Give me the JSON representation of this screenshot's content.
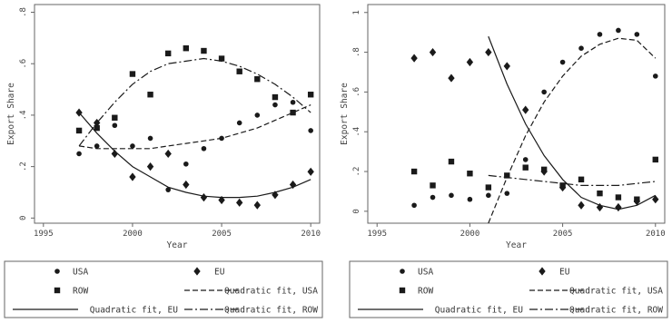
{
  "chart_data": [
    {
      "type": "scatter",
      "xlabel": "Year",
      "ylabel": "Export Share",
      "xlim": [
        1994.5,
        2010.5
      ],
      "ylim": [
        -0.02,
        0.83
      ],
      "xticks": [
        1995,
        2000,
        2005,
        2010
      ],
      "xtick_labels": [
        "1995",
        "2000",
        "2005",
        "2010"
      ],
      "yticks": [
        0,
        0.2,
        0.4,
        0.6,
        0.8
      ],
      "ytick_labels": [
        "0",
        ".2",
        ".4",
        ".6",
        ".8"
      ],
      "grid": false,
      "legend_placement": "bottom",
      "series": [
        {
          "name": "USA",
          "marker": "circle",
          "x": [
            1997,
            1998,
            1999,
            2000,
            2001,
            2002,
            2003,
            2004,
            2005,
            2006,
            2007,
            2008,
            2009,
            2010
          ],
          "y": [
            0.25,
            0.28,
            0.36,
            0.28,
            0.31,
            0.11,
            0.21,
            0.27,
            0.31,
            0.37,
            0.4,
            0.44,
            0.45,
            0.34
          ]
        },
        {
          "name": "EU",
          "marker": "diamond",
          "x": [
            1997,
            1998,
            1999,
            2000,
            2001,
            2002,
            2003,
            2004,
            2005,
            2006,
            2007,
            2008,
            2009,
            2010
          ],
          "y": [
            0.41,
            0.37,
            0.25,
            0.16,
            0.2,
            0.25,
            0.13,
            0.08,
            0.07,
            0.06,
            0.05,
            0.09,
            0.13,
            0.18
          ]
        },
        {
          "name": "ROW",
          "marker": "square",
          "x": [
            1997,
            1998,
            1999,
            2000,
            2001,
            2002,
            2003,
            2004,
            2005,
            2006,
            2007,
            2008,
            2009,
            2010
          ],
          "y": [
            0.34,
            0.35,
            0.39,
            0.56,
            0.48,
            0.64,
            0.66,
            0.65,
            0.62,
            0.57,
            0.54,
            0.47,
            0.41,
            0.48
          ]
        }
      ],
      "fits": [
        {
          "name": "Quadratic fit, USA",
          "style": "dash",
          "x_range": [
            1997,
            2010
          ],
          "x": [
            1997,
            1998,
            1999,
            2000,
            2001,
            2002,
            2003,
            2004,
            2005,
            2006,
            2007,
            2008,
            2009,
            2010
          ],
          "y": [
            0.28,
            0.27,
            0.27,
            0.27,
            0.27,
            0.28,
            0.29,
            0.3,
            0.31,
            0.33,
            0.35,
            0.38,
            0.41,
            0.44
          ]
        },
        {
          "name": "Quadratic fit, EU",
          "style": "solid",
          "x_range": [
            1997,
            2010
          ],
          "x": [
            1997,
            1998,
            1999,
            2000,
            2001,
            2002,
            2003,
            2004,
            2005,
            2006,
            2007,
            2008,
            2009,
            2010
          ],
          "y": [
            0.41,
            0.33,
            0.26,
            0.2,
            0.16,
            0.12,
            0.1,
            0.085,
            0.08,
            0.08,
            0.085,
            0.1,
            0.12,
            0.15
          ]
        },
        {
          "name": "Quadratic fit, ROW",
          "style": "dashdot",
          "x_range": [
            1997,
            2010
          ],
          "x": [
            1997,
            1998,
            1999,
            2000,
            2001,
            2002,
            2003,
            2004,
            2005,
            2006,
            2007,
            2008,
            2009,
            2010
          ],
          "y": [
            0.28,
            0.37,
            0.45,
            0.52,
            0.57,
            0.6,
            0.61,
            0.62,
            0.61,
            0.59,
            0.56,
            0.52,
            0.47,
            0.41
          ]
        }
      ],
      "legend": [
        "USA",
        "EU",
        "ROW",
        "Quadratic fit, USA",
        "Quadratic fit, EU",
        "Quadratic fit, ROW"
      ]
    },
    {
      "type": "scatter",
      "xlabel": "Year",
      "ylabel": "Export Share",
      "xlim": [
        1994.5,
        2010.5
      ],
      "ylim": [
        -0.06,
        1.04
      ],
      "xticks": [
        1995,
        2000,
        2005,
        2010
      ],
      "xtick_labels": [
        "1995",
        "2000",
        "2005",
        "2010"
      ],
      "yticks": [
        0,
        0.2,
        0.4,
        0.6,
        0.8,
        1
      ],
      "ytick_labels": [
        "0",
        ".2",
        ".4",
        ".6",
        ".8",
        "1"
      ],
      "grid": false,
      "legend_placement": "bottom",
      "series": [
        {
          "name": "USA",
          "marker": "circle",
          "x": [
            1997,
            1998,
            1999,
            2000,
            2001,
            2002,
            2003,
            2004,
            2005,
            2006,
            2007,
            2008,
            2009,
            2010
          ],
          "y": [
            0.03,
            0.07,
            0.08,
            0.06,
            0.08,
            0.09,
            0.26,
            0.6,
            0.75,
            0.82,
            0.89,
            0.91,
            0.89,
            0.68
          ]
        },
        {
          "name": "EU",
          "marker": "diamond",
          "x": [
            1997,
            1998,
            1999,
            2000,
            2001,
            2002,
            2003,
            2004,
            2005,
            2006,
            2007,
            2008,
            2009,
            2010
          ],
          "y": [
            0.77,
            0.8,
            0.67,
            0.75,
            0.8,
            0.73,
            0.51,
            0.2,
            0.12,
            0.03,
            0.02,
            0.02,
            0.05,
            0.06
          ]
        },
        {
          "name": "ROW",
          "marker": "square",
          "x": [
            1997,
            1998,
            1999,
            2000,
            2001,
            2002,
            2003,
            2004,
            2005,
            2006,
            2007,
            2008,
            2009,
            2010
          ],
          "y": [
            0.2,
            0.13,
            0.25,
            0.19,
            0.12,
            0.18,
            0.22,
            0.21,
            0.13,
            0.16,
            0.09,
            0.07,
            0.06,
            0.26
          ]
        }
      ],
      "fits": [
        {
          "name": "Quadratic fit, USA",
          "style": "dash",
          "x_range": [
            2001,
            2010
          ],
          "x": [
            2001,
            2002,
            2003,
            2004,
            2005,
            2006,
            2007,
            2008,
            2009,
            2010
          ],
          "y": [
            -0.06,
            0.17,
            0.38,
            0.55,
            0.68,
            0.78,
            0.84,
            0.87,
            0.86,
            0.77
          ]
        },
        {
          "name": "Quadratic fit, EU",
          "style": "solid",
          "x_range": [
            2001,
            2010
          ],
          "x": [
            2001,
            2002,
            2003,
            2004,
            2005,
            2006,
            2007,
            2008,
            2009,
            2010
          ],
          "y": [
            0.88,
            0.64,
            0.44,
            0.28,
            0.16,
            0.07,
            0.03,
            0.01,
            0.03,
            0.08
          ]
        },
        {
          "name": "Quadratic fit, ROW",
          "style": "dashdot",
          "x_range": [
            2001,
            2010
          ],
          "x": [
            2001,
            2002,
            2003,
            2004,
            2005,
            2006,
            2007,
            2008,
            2009,
            2010
          ],
          "y": [
            0.18,
            0.17,
            0.16,
            0.15,
            0.14,
            0.13,
            0.13,
            0.13,
            0.14,
            0.15
          ]
        }
      ],
      "legend": [
        "USA",
        "EU",
        "ROW",
        "Quadratic fit, USA",
        "Quadratic fit, EU",
        "Quadratic fit, ROW"
      ]
    }
  ],
  "colors": {
    "marks": "#1a1a1a",
    "axis": "#666666",
    "text": "#444444"
  }
}
